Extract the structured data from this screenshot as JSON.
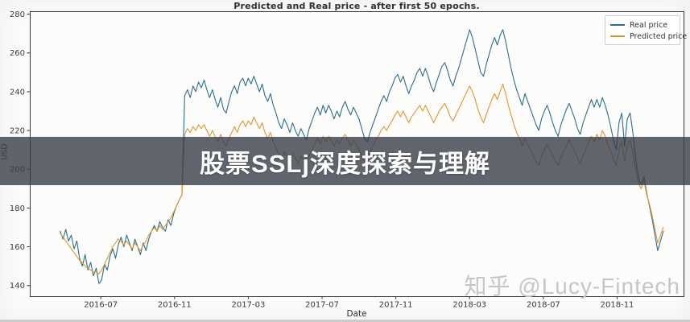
{
  "banner": {
    "text": "股票SSLj深度探索与理解"
  },
  "watermark": {
    "text": "知乎 @Lucy-Fintech"
  },
  "colors": {
    "real_line": "#2b6f8a",
    "predicted_line": "#e0962f",
    "banner_bg": "rgba(56,61,72,0.80)",
    "watermark_text": "#c6c6c6",
    "axis": "#333333"
  },
  "chart_data": {
    "type": "line",
    "title": "Predicted and Real price - after first 50 epochs.",
    "xlabel": "Date",
    "ylabel": "USD",
    "grid": false,
    "ylim": [
      134.5,
      281.5
    ],
    "y_ticks": [
      140,
      160,
      180,
      200,
      220,
      240,
      260,
      280
    ],
    "x_tick_labels": [
      "2016-07",
      "2016-11",
      "2017-03",
      "2017-07",
      "2017-11",
      "2018-03",
      "2018-07",
      "2018-11"
    ],
    "x_tick_months": [
      0,
      4,
      8,
      12,
      16,
      20,
      24,
      28
    ],
    "xlim_months": [
      -3.85,
      31.6
    ],
    "x_axis_note": "x measured in months relative to 2016-07",
    "x_start_month": -2.2,
    "x_step_month": 0.15,
    "legend": {
      "position": "upper right",
      "entries": [
        "Real price",
        "Predicted price"
      ]
    },
    "series": [
      {
        "name": "Real price",
        "color": "#2b6f8a",
        "values": [
          168,
          164,
          169,
          163,
          166,
          159,
          163,
          154,
          150,
          156,
          148,
          152,
          145,
          149,
          141,
          143,
          151,
          148,
          155,
          159,
          154,
          161,
          165,
          160,
          166,
          162,
          158,
          164,
          160,
          156,
          162,
          158,
          164,
          168,
          171,
          168,
          173,
          170,
          168,
          174,
          171,
          177,
          181,
          184,
          187,
          238,
          241,
          237,
          243,
          240,
          245,
          242,
          246,
          241,
          237,
          241,
          236,
          232,
          237,
          231,
          229,
          235,
          240,
          243,
          239,
          245,
          247,
          243,
          247,
          244,
          248,
          244,
          240,
          244,
          238,
          235,
          239,
          233,
          229,
          224,
          221,
          226,
          223,
          219,
          224,
          220,
          217,
          221,
          218,
          215,
          221,
          225,
          229,
          232,
          228,
          233,
          229,
          233,
          230,
          226,
          230,
          227,
          232,
          235,
          231,
          228,
          232,
          229,
          226,
          221,
          216,
          214,
          219,
          223,
          227,
          231,
          235,
          238,
          235,
          240,
          243,
          247,
          249,
          245,
          248,
          243,
          239,
          243,
          246,
          250,
          252,
          248,
          252,
          248,
          243,
          240,
          245,
          249,
          253,
          255,
          251,
          246,
          243,
          248,
          252,
          257,
          262,
          267,
          272,
          268,
          262,
          256,
          250,
          248,
          254,
          259,
          264,
          268,
          264,
          269,
          272,
          266,
          259,
          252,
          246,
          241,
          237,
          233,
          239,
          235,
          231,
          227,
          223,
          220,
          226,
          230,
          233,
          229,
          224,
          220,
          217,
          223,
          227,
          231,
          234,
          230,
          226,
          221,
          218,
          224,
          228,
          232,
          236,
          232,
          236,
          232,
          237,
          233,
          228,
          222,
          215,
          210,
          224,
          229,
          212,
          226,
          229,
          219,
          206,
          196,
          192,
          196,
          188,
          181,
          174,
          166,
          158,
          163,
          168
        ]
      },
      {
        "name": "Predicted price",
        "color": "#e0962f",
        "values": [
          167,
          165,
          163,
          161,
          159,
          157,
          155,
          153,
          152,
          150,
          149,
          148,
          147,
          147,
          146,
          148,
          151,
          154,
          157,
          160,
          162,
          164,
          163,
          161,
          163,
          161,
          159,
          162,
          160,
          158,
          161,
          163,
          166,
          168,
          170,
          168,
          171,
          169,
          171,
          173,
          175,
          178,
          181,
          184,
          187,
          218,
          221,
          219,
          222,
          220,
          223,
          221,
          223,
          220,
          217,
          220,
          217,
          214,
          218,
          214,
          212,
          216,
          219,
          222,
          219,
          223,
          225,
          222,
          225,
          223,
          227,
          224,
          221,
          224,
          219,
          216,
          219,
          214,
          211,
          208,
          205,
          209,
          207,
          204,
          208,
          206,
          203,
          207,
          205,
          203,
          207,
          210,
          213,
          216,
          213,
          217,
          214,
          217,
          215,
          212,
          215,
          213,
          216,
          218,
          215,
          212,
          215,
          213,
          210,
          207,
          204,
          206,
          209,
          212,
          215,
          217,
          220,
          222,
          220,
          223,
          225,
          228,
          230,
          227,
          230,
          227,
          224,
          227,
          229,
          231,
          233,
          230,
          233,
          230,
          227,
          224,
          227,
          230,
          232,
          234,
          231,
          227,
          225,
          228,
          231,
          234,
          237,
          240,
          243,
          240,
          236,
          231,
          227,
          224,
          228,
          232,
          236,
          239,
          236,
          240,
          244,
          239,
          233,
          228,
          223,
          219,
          216,
          212,
          216,
          213,
          210,
          207,
          204,
          202,
          207,
          210,
          213,
          210,
          207,
          204,
          202,
          206,
          209,
          212,
          215,
          212,
          209,
          206,
          203,
          207,
          210,
          214,
          217,
          214,
          218,
          215,
          220,
          217,
          213,
          209,
          205,
          202,
          210,
          214,
          204,
          212,
          215,
          209,
          200,
          193,
          190,
          194,
          187,
          182,
          176,
          169,
          162,
          166,
          170
        ]
      }
    ]
  }
}
